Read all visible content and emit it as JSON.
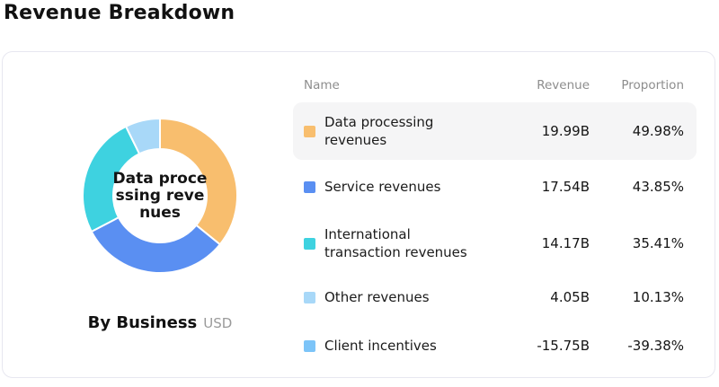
{
  "page": {
    "title": "Revenue Breakdown"
  },
  "card": {
    "caption": {
      "label": "By Business",
      "unit": "USD"
    }
  },
  "table": {
    "headers": {
      "name": "Name",
      "revenue": "Revenue",
      "proportion": "Proportion"
    },
    "rows": [
      {
        "name": "Data processing revenues",
        "revenue": "19.99B",
        "proportion": "49.98%",
        "swatch_color": "#F8BE6E",
        "highlighted": true
      },
      {
        "name": "Service revenues",
        "revenue": "17.54B",
        "proportion": "43.85%",
        "swatch_color": "#5A8FF2",
        "highlighted": false
      },
      {
        "name": "International transaction revenues",
        "revenue": "14.17B",
        "proportion": "35.41%",
        "swatch_color": "#3ED2E0",
        "highlighted": false
      },
      {
        "name": "Other revenues",
        "revenue": "4.05B",
        "proportion": "10.13%",
        "swatch_color": "#A8D8F8",
        "highlighted": false
      },
      {
        "name": "Client incentives",
        "revenue": "-15.75B",
        "proportion": "-39.38%",
        "swatch_color": "#7CC4F8",
        "highlighted": false
      }
    ]
  },
  "chart_data": {
    "type": "pie",
    "subtype": "donut",
    "title": "Revenue Breakdown",
    "subtitle": "By Business",
    "unit": "USD",
    "center_label": "Data processing revenues",
    "center_lines": [
      "Data proce",
      "ssing reve",
      "nues"
    ],
    "start_angle_deg": 0,
    "segments": [
      {
        "name": "Data processing revenues",
        "value": 19.99,
        "proportion_pct": 49.98,
        "color": "#F8BE6E"
      },
      {
        "name": "Service revenues",
        "value": 17.54,
        "proportion_pct": 43.85,
        "color": "#5A8FF2"
      },
      {
        "name": "International transaction revenues",
        "value": 14.17,
        "proportion_pct": 35.41,
        "color": "#3ED2E0"
      },
      {
        "name": "Other revenues",
        "value": 4.05,
        "proportion_pct": 10.13,
        "color": "#A8D8F8"
      }
    ],
    "table_only_series": [
      {
        "name": "Client incentives",
        "value": -15.75,
        "proportion_pct": -39.38,
        "color": "#7CC4F8"
      }
    ]
  },
  "colors": {
    "card_border": "#E7E7F0",
    "row_highlight_bg": "#F5F5F6",
    "header_text": "#8D8D8D",
    "body_text": "#141414"
  }
}
